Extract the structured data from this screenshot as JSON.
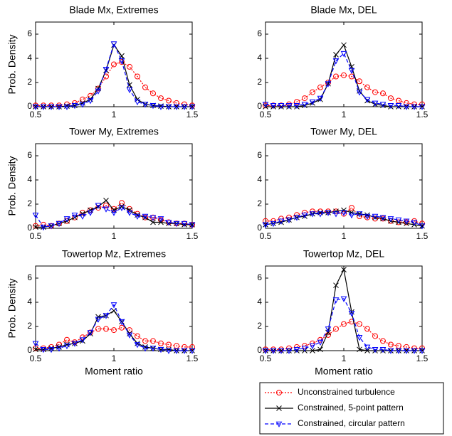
{
  "chart_data": [
    {
      "type": "line",
      "title": "Blade Mx, Extremes",
      "ylabel": "Prob. Density",
      "x": [
        0.5,
        0.55,
        0.6,
        0.65,
        0.7,
        0.75,
        0.8,
        0.85,
        0.9,
        0.95,
        1,
        1.05,
        1.1,
        1.15,
        1.2,
        1.25,
        1.3,
        1.35,
        1.4,
        1.45,
        1.5
      ],
      "xlim": [
        0.5,
        1.5
      ],
      "xticks": [
        0.5,
        1,
        1.5
      ],
      "ylim": [
        0,
        7
      ],
      "yticks": [
        0,
        2,
        4,
        6
      ],
      "series": [
        {
          "color": "#ff0000",
          "marker": "circle",
          "dash": "2,2",
          "values": [
            0.1,
            0.1,
            0.1,
            0.1,
            0.2,
            0.3,
            0.6,
            0.9,
            1.5,
            2.5,
            3.5,
            3.7,
            3.3,
            2.5,
            1.6,
            1.1,
            0.7,
            0.5,
            0.3,
            0.2,
            0.1
          ]
        },
        {
          "color": "#000000",
          "marker": "x",
          "dash": "none",
          "values": [
            0,
            0,
            0,
            0,
            0.05,
            0.1,
            0.3,
            0.6,
            1.5,
            3.0,
            5.1,
            4.2,
            1.8,
            0.6,
            0.2,
            0.1,
            0.05,
            0,
            0,
            0,
            0
          ]
        },
        {
          "color": "#0000ff",
          "marker": "triangle-down",
          "dash": "5,3",
          "values": [
            0,
            0,
            0,
            0,
            0,
            0.1,
            0.2,
            0.5,
            1.3,
            3.1,
            5.2,
            3.8,
            1.4,
            0.4,
            0.2,
            0.1,
            0,
            0,
            0,
            0,
            0
          ]
        }
      ]
    },
    {
      "type": "line",
      "title": "Blade Mx, DEL",
      "x": [
        0.5,
        0.55,
        0.6,
        0.65,
        0.7,
        0.75,
        0.8,
        0.85,
        0.9,
        0.95,
        1,
        1.05,
        1.1,
        1.15,
        1.2,
        1.25,
        1.3,
        1.35,
        1.4,
        1.45,
        1.5
      ],
      "xlim": [
        0.5,
        1.5
      ],
      "xticks": [
        0.5,
        1,
        1.5
      ],
      "ylim": [
        0,
        7
      ],
      "yticks": [
        0,
        2,
        4,
        6
      ],
      "series": [
        {
          "color": "#ff0000",
          "marker": "circle",
          "dash": "2,2",
          "values": [
            0.1,
            0.1,
            0.1,
            0.2,
            0.4,
            0.7,
            1.2,
            1.6,
            2.0,
            2.5,
            2.6,
            2.5,
            2.1,
            1.6,
            1.2,
            1.1,
            0.7,
            0.5,
            0.3,
            0.2,
            0.2
          ]
        },
        {
          "color": "#000000",
          "marker": "x",
          "dash": "none",
          "values": [
            0,
            0,
            0,
            0,
            0,
            0.1,
            0.3,
            0.6,
            1.9,
            4.3,
            5.1,
            3.3,
            1.3,
            0.5,
            0.2,
            0.1,
            0,
            0,
            0,
            0,
            0
          ]
        },
        {
          "color": "#0000ff",
          "marker": "triangle-down",
          "dash": "5,3",
          "values": [
            0.2,
            0.1,
            0.1,
            0.1,
            0.1,
            0.2,
            0.4,
            0.7,
            1.9,
            3.8,
            4.4,
            3.0,
            1.2,
            0.6,
            0.3,
            0.2,
            0.1,
            0.1,
            0,
            0,
            0
          ]
        }
      ]
    },
    {
      "type": "line",
      "title": "Tower My, Extremes",
      "ylabel": "Prob. Density",
      "x": [
        0.5,
        0.55,
        0.6,
        0.65,
        0.7,
        0.75,
        0.8,
        0.85,
        0.9,
        0.95,
        1,
        1.05,
        1.1,
        1.15,
        1.2,
        1.25,
        1.3,
        1.35,
        1.4,
        1.45,
        1.5
      ],
      "xlim": [
        0.5,
        1.5
      ],
      "xticks": [
        0.5,
        1,
        1.5
      ],
      "ylim": [
        0,
        7
      ],
      "yticks": [
        0,
        2,
        4,
        6
      ],
      "series": [
        {
          "color": "#ff0000",
          "marker": "circle",
          "dash": "2,2",
          "values": [
            0.2,
            0.3,
            0.2,
            0.4,
            0.6,
            0.9,
            1.3,
            1.5,
            1.7,
            1.9,
            1.6,
            2.1,
            1.6,
            1.2,
            0.9,
            0.9,
            0.7,
            0.5,
            0.4,
            0.4,
            0.3
          ]
        },
        {
          "color": "#000000",
          "marker": "x",
          "dash": "none",
          "values": [
            0.1,
            0.1,
            0.2,
            0.4,
            0.6,
            0.9,
            1.2,
            1.5,
            1.8,
            2.3,
            1.5,
            1.8,
            1.5,
            1.1,
            0.9,
            0.5,
            0.5,
            0.4,
            0.4,
            0.3,
            0.3
          ]
        },
        {
          "color": "#0000ff",
          "marker": "triangle-down",
          "dash": "5,3",
          "values": [
            1.1,
            0.1,
            0.2,
            0.4,
            0.8,
            1.1,
            1.0,
            1.3,
            1.9,
            1.6,
            1.3,
            1.7,
            1.3,
            1.0,
            1.0,
            0.9,
            0.8,
            0.5,
            0.4,
            0.4,
            0.3
          ]
        }
      ]
    },
    {
      "type": "line",
      "title": "Tower My, DEL",
      "x": [
        0.5,
        0.55,
        0.6,
        0.65,
        0.7,
        0.75,
        0.8,
        0.85,
        0.9,
        0.95,
        1,
        1.05,
        1.1,
        1.15,
        1.2,
        1.25,
        1.3,
        1.35,
        1.4,
        1.45,
        1.5
      ],
      "xlim": [
        0.5,
        1.5
      ],
      "xticks": [
        0.5,
        1,
        1.5
      ],
      "ylim": [
        0,
        7
      ],
      "yticks": [
        0,
        2,
        4,
        6
      ],
      "series": [
        {
          "color": "#ff0000",
          "marker": "circle",
          "dash": "2,2",
          "values": [
            0.6,
            0.6,
            0.8,
            0.9,
            1.1,
            1.3,
            1.4,
            1.4,
            1.4,
            1.4,
            1.2,
            1.7,
            1.0,
            0.9,
            0.8,
            0.8,
            0.6,
            0.5,
            0.5,
            0.6,
            0.4
          ]
        },
        {
          "color": "#000000",
          "marker": "x",
          "dash": "none",
          "values": [
            0.3,
            0.4,
            0.5,
            0.7,
            0.9,
            1.0,
            1.2,
            1.3,
            1.3,
            1.4,
            1.5,
            1.3,
            1.2,
            1.1,
            0.9,
            0.8,
            0.6,
            0.5,
            0.4,
            0.3,
            0.2
          ]
        },
        {
          "color": "#0000ff",
          "marker": "triangle-down",
          "dash": "5,3",
          "values": [
            0.3,
            0.4,
            0.6,
            0.7,
            0.9,
            1.1,
            1.2,
            1.2,
            1.3,
            1.2,
            1.3,
            1.1,
            1.2,
            1.0,
            1.0,
            0.9,
            0.8,
            0.7,
            0.6,
            0.5,
            0.2
          ]
        }
      ]
    },
    {
      "type": "line",
      "title": "Towertop Mz, Extremes",
      "ylabel": "Prob. Density",
      "xlabel": "Moment ratio",
      "x": [
        0.5,
        0.55,
        0.6,
        0.65,
        0.7,
        0.75,
        0.8,
        0.85,
        0.9,
        0.95,
        1,
        1.05,
        1.1,
        1.15,
        1.2,
        1.25,
        1.3,
        1.35,
        1.4,
        1.45,
        1.5
      ],
      "xlim": [
        0.5,
        1.5
      ],
      "xticks": [
        0.5,
        1,
        1.5
      ],
      "ylim": [
        0,
        7
      ],
      "yticks": [
        0,
        2,
        4,
        6
      ],
      "series": [
        {
          "color": "#ff0000",
          "marker": "circle",
          "dash": "2,2",
          "values": [
            0.2,
            0.2,
            0.3,
            0.5,
            0.9,
            0.7,
            1.1,
            1.5,
            1.8,
            1.8,
            1.7,
            1.9,
            1.7,
            1.2,
            0.8,
            0.8,
            0.6,
            0.5,
            0.4,
            0.3,
            0.3
          ]
        },
        {
          "color": "#000000",
          "marker": "x",
          "dash": "none",
          "values": [
            0.1,
            0.1,
            0.2,
            0.3,
            0.5,
            0.6,
            0.8,
            1.4,
            2.8,
            2.9,
            3.3,
            2.4,
            1.4,
            0.6,
            0.3,
            0.2,
            0.1,
            0.1,
            0,
            0,
            0
          ]
        },
        {
          "color": "#0000ff",
          "marker": "triangle-down",
          "dash": "5,3",
          "values": [
            0.6,
            0.1,
            0.1,
            0.2,
            0.4,
            0.6,
            0.9,
            1.5,
            2.6,
            2.9,
            3.8,
            2.4,
            1.3,
            0.5,
            0.2,
            0.2,
            0.1,
            0,
            0,
            0,
            0
          ]
        }
      ]
    },
    {
      "type": "line",
      "title": "Towertop Mz, DEL",
      "xlabel": "Moment ratio",
      "x": [
        0.5,
        0.55,
        0.6,
        0.65,
        0.7,
        0.75,
        0.8,
        0.85,
        0.9,
        0.95,
        1,
        1.05,
        1.1,
        1.15,
        1.2,
        1.25,
        1.3,
        1.35,
        1.4,
        1.45,
        1.5
      ],
      "xlim": [
        0.5,
        1.5
      ],
      "xticks": [
        0.5,
        1,
        1.5
      ],
      "ylim": [
        0,
        7
      ],
      "yticks": [
        0,
        2,
        4,
        6
      ],
      "series": [
        {
          "color": "#ff0000",
          "marker": "circle",
          "dash": "2,2",
          "values": [
            0.1,
            0.1,
            0.1,
            0.2,
            0.3,
            0.4,
            0.6,
            0.9,
            1.3,
            1.8,
            2.2,
            2.4,
            2.2,
            1.8,
            1.2,
            0.8,
            0.5,
            0.4,
            0.3,
            0.2,
            0.2
          ]
        },
        {
          "color": "#000000",
          "marker": "x",
          "dash": "none",
          "values": [
            0,
            0,
            0,
            0,
            0,
            0,
            0,
            0.1,
            1.5,
            5.4,
            6.7,
            3.2,
            0.1,
            0,
            0,
            0,
            0,
            0,
            0,
            0,
            0
          ]
        },
        {
          "color": "#0000ff",
          "marker": "triangle-down",
          "dash": "5,3",
          "values": [
            0,
            0,
            0,
            0,
            0.1,
            0.2,
            0.4,
            0.7,
            1.8,
            4.2,
            4.3,
            3.1,
            1.1,
            0.3,
            0.1,
            0.1,
            0,
            0,
            0,
            0,
            0
          ]
        }
      ]
    }
  ],
  "legend": [
    "Unconstrained turbulence",
    "Constrained, 5-point pattern",
    "Constrained, circular pattern"
  ]
}
